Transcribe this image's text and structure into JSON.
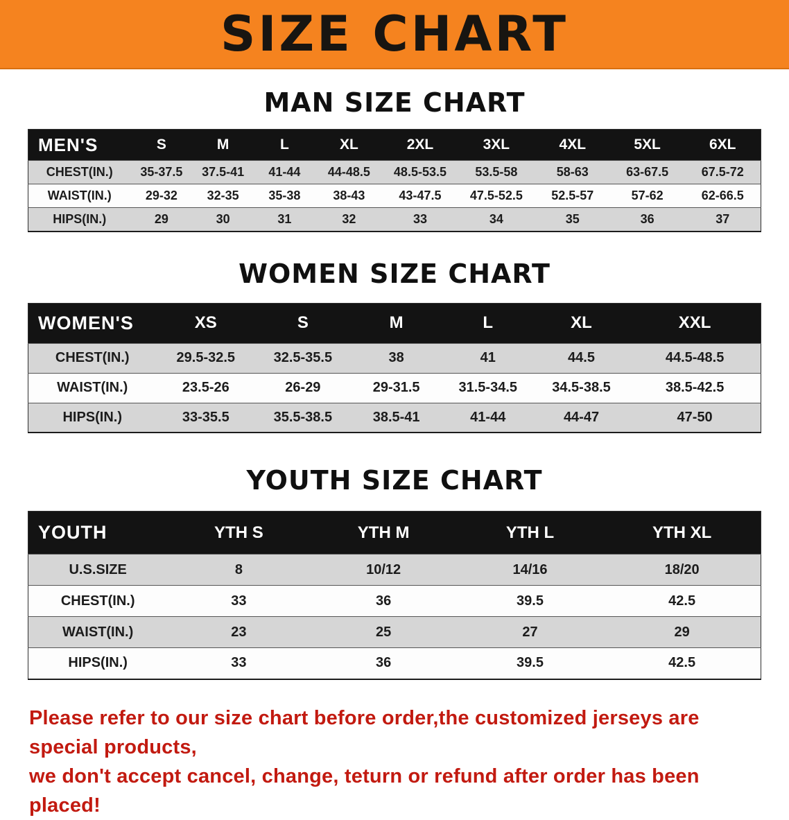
{
  "banner": {
    "title": "SIZE CHART"
  },
  "colors": {
    "banner_bg": "#f5831f",
    "table_header_bg": "#131313",
    "row_stripe": "#d6d6d6",
    "footer_text": "#c21a10"
  },
  "men": {
    "heading": "MAN SIZE CHART",
    "header": [
      "MEN'S",
      "S",
      "M",
      "L",
      "XL",
      "2XL",
      "3XL",
      "4XL",
      "5XL",
      "6XL"
    ],
    "rows": [
      [
        "CHEST(IN.)",
        "35-37.5",
        "37.5-41",
        "41-44",
        "44-48.5",
        "48.5-53.5",
        "53.5-58",
        "58-63",
        "63-67.5",
        "67.5-72"
      ],
      [
        "WAIST(IN.)",
        "29-32",
        "32-35",
        "35-38",
        "38-43",
        "43-47.5",
        "47.5-52.5",
        "52.5-57",
        "57-62",
        "62-66.5"
      ],
      [
        "HIPS(IN.)",
        "29",
        "30",
        "31",
        "32",
        "33",
        "34",
        "35",
        "36",
        "37"
      ]
    ]
  },
  "women": {
    "heading": "WOMEN SIZE CHART",
    "header": [
      "WOMEN'S",
      "XS",
      "S",
      "M",
      "L",
      "XL",
      "XXL"
    ],
    "rows": [
      [
        "CHEST(IN.)",
        "29.5-32.5",
        "32.5-35.5",
        "38",
        "41",
        "44.5",
        "44.5-48.5"
      ],
      [
        "WAIST(IN.)",
        "23.5-26",
        "26-29",
        "29-31.5",
        "31.5-34.5",
        "34.5-38.5",
        "38.5-42.5"
      ],
      [
        "HIPS(IN.)",
        "33-35.5",
        "35.5-38.5",
        "38.5-41",
        "41-44",
        "44-47",
        "47-50"
      ]
    ]
  },
  "youth": {
    "heading": "YOUTH SIZE CHART",
    "header": [
      "YOUTH",
      "YTH S",
      "YTH M",
      "YTH L",
      "YTH XL"
    ],
    "rows": [
      [
        "U.S.SIZE",
        "8",
        "10/12",
        "14/16",
        "18/20"
      ],
      [
        "CHEST(IN.)",
        "33",
        "36",
        "39.5",
        "42.5"
      ],
      [
        "WAIST(IN.)",
        "23",
        "25",
        "27",
        "29"
      ],
      [
        "HIPS(IN.)",
        "33",
        "36",
        "39.5",
        "42.5"
      ]
    ]
  },
  "footer": {
    "line1": "Please refer to our size chart before order,the customized jerseys are special products,",
    "line2": "we don't accept cancel, change, teturn or refund after order has been placed!"
  }
}
